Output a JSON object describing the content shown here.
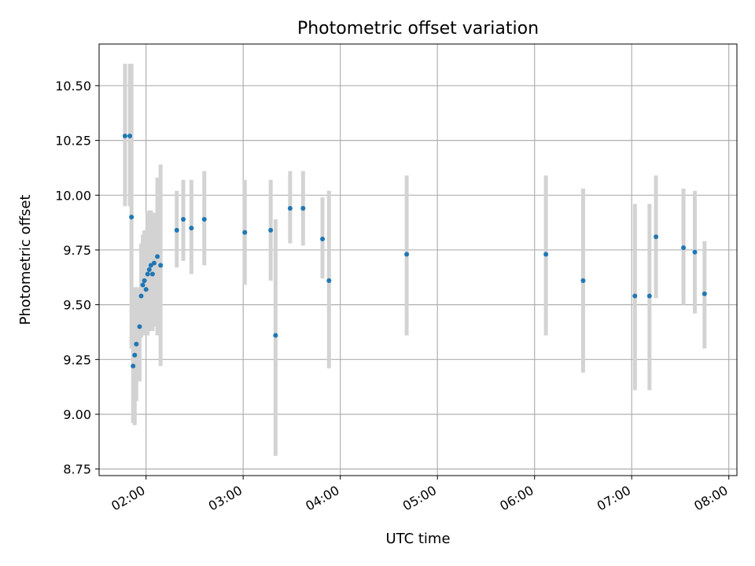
{
  "chart_data": {
    "type": "scatter",
    "title": "Photometric offset variation",
    "xlabel": "UTC time",
    "ylabel": "Photometric offset",
    "xlim": [
      "01:31",
      "08:05"
    ],
    "ylim": [
      8.72,
      10.69
    ],
    "grid": true,
    "xticks": [
      "02:00",
      "03:00",
      "04:00",
      "05:00",
      "06:00",
      "07:00",
      "08:00"
    ],
    "yticks": [
      "8.75",
      "9.00",
      "9.25",
      "9.50",
      "9.75",
      "10.00",
      "10.25",
      "10.50"
    ],
    "point_color": "#1f77b4",
    "errorbar_color": "#d3d3d3",
    "points": [
      {
        "t": "01:47",
        "y": 10.27,
        "lo": 9.95,
        "hi": 10.6
      },
      {
        "t": "01:50",
        "y": 10.27,
        "lo": 9.95,
        "hi": 10.6
      },
      {
        "t": "01:51",
        "y": 9.9,
        "lo": 9.3,
        "hi": 10.6
      },
      {
        "t": "01:52",
        "y": 9.22,
        "lo": 8.96,
        "hi": 9.58
      },
      {
        "t": "01:53",
        "y": 9.27,
        "lo": 8.95,
        "hi": 9.58
      },
      {
        "t": "01:54",
        "y": 9.32,
        "lo": 9.06,
        "hi": 9.58
      },
      {
        "t": "01:56",
        "y": 9.4,
        "lo": 9.15,
        "hi": 9.58
      },
      {
        "t": "01:57",
        "y": 9.54,
        "lo": 9.35,
        "hi": 9.78
      },
      {
        "t": "01:58",
        "y": 9.59,
        "lo": 9.36,
        "hi": 9.82
      },
      {
        "t": "01:59",
        "y": 9.61,
        "lo": 9.38,
        "hi": 9.84
      },
      {
        "t": "02:00",
        "y": 9.57,
        "lo": 9.36,
        "hi": 9.84
      },
      {
        "t": "02:01",
        "y": 9.64,
        "lo": 9.36,
        "hi": 9.92
      },
      {
        "t": "02:02",
        "y": 9.66,
        "lo": 9.38,
        "hi": 9.93
      },
      {
        "t": "02:03",
        "y": 9.68,
        "lo": 9.42,
        "hi": 9.93
      },
      {
        "t": "02:04",
        "y": 9.64,
        "lo": 9.38,
        "hi": 9.92
      },
      {
        "t": "02:05",
        "y": 9.69,
        "lo": 9.4,
        "hi": 9.92
      },
      {
        "t": "02:07",
        "y": 9.72,
        "lo": 9.36,
        "hi": 10.08
      },
      {
        "t": "02:09",
        "y": 9.68,
        "lo": 9.22,
        "hi": 10.14
      },
      {
        "t": "02:19",
        "y": 9.84,
        "lo": 9.67,
        "hi": 10.02
      },
      {
        "t": "02:23",
        "y": 9.89,
        "lo": 9.7,
        "hi": 10.07
      },
      {
        "t": "02:28",
        "y": 9.85,
        "lo": 9.64,
        "hi": 10.07
      },
      {
        "t": "02:36",
        "y": 9.89,
        "lo": 9.68,
        "hi": 10.11
      },
      {
        "t": "03:01",
        "y": 9.83,
        "lo": 9.59,
        "hi": 10.07
      },
      {
        "t": "03:17",
        "y": 9.84,
        "lo": 9.61,
        "hi": 10.07
      },
      {
        "t": "03:20",
        "y": 9.36,
        "lo": 8.81,
        "hi": 9.89
      },
      {
        "t": "03:29",
        "y": 9.94,
        "lo": 9.78,
        "hi": 10.11
      },
      {
        "t": "03:37",
        "y": 9.94,
        "lo": 9.77,
        "hi": 10.11
      },
      {
        "t": "03:49",
        "y": 9.8,
        "lo": 9.62,
        "hi": 9.99
      },
      {
        "t": "03:53",
        "y": 9.61,
        "lo": 9.21,
        "hi": 10.02
      },
      {
        "t": "04:41",
        "y": 9.73,
        "lo": 9.36,
        "hi": 10.09
      },
      {
        "t": "06:07",
        "y": 9.73,
        "lo": 9.36,
        "hi": 10.09
      },
      {
        "t": "06:30",
        "y": 9.61,
        "lo": 9.19,
        "hi": 10.03
      },
      {
        "t": "07:02",
        "y": 9.54,
        "lo": 9.11,
        "hi": 9.96
      },
      {
        "t": "07:11",
        "y": 9.54,
        "lo": 9.11,
        "hi": 9.96
      },
      {
        "t": "07:15",
        "y": 9.81,
        "lo": 9.53,
        "hi": 10.09
      },
      {
        "t": "07:32",
        "y": 9.76,
        "lo": 9.5,
        "hi": 10.03
      },
      {
        "t": "07:39",
        "y": 9.74,
        "lo": 9.46,
        "hi": 10.02
      },
      {
        "t": "07:45",
        "y": 9.55,
        "lo": 9.3,
        "hi": 9.79
      }
    ]
  }
}
